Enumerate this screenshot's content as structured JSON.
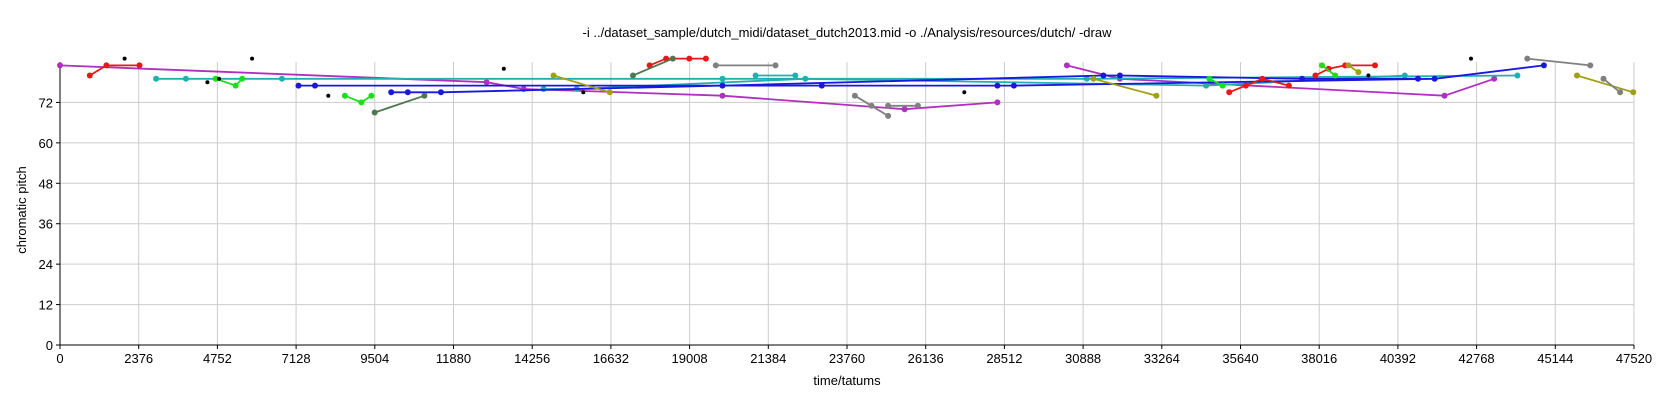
{
  "chart_data": {
    "type": "scatter",
    "title": "-i ../dataset_sample/dutch_midi/dataset_dutch2013.mid -o ./Analysis/resources/dutch/ -draw",
    "xlabel": "time/tatums",
    "ylabel": "chromatic pitch",
    "xlim": [
      0,
      47520
    ],
    "ylim": [
      0,
      84
    ],
    "x_ticks": [
      "0",
      "2376",
      "4752",
      "7128",
      "9504",
      "11880",
      "14256",
      "16632",
      "19008",
      "21384",
      "23760",
      "26136",
      "28512",
      "30888",
      "33264",
      "35640",
      "38016",
      "40392",
      "42768",
      "45144",
      "47520"
    ],
    "y_ticks": [
      "0",
      "12",
      "24",
      "36",
      "48",
      "60",
      "72"
    ],
    "grid": true,
    "series": [
      {
        "color": "#b030c0",
        "points": [
          [
            0,
            83
          ],
          [
            12880,
            78
          ],
          [
            14000,
            76
          ],
          [
            20000,
            74
          ],
          [
            25500,
            70
          ],
          [
            28300,
            72
          ]
        ]
      },
      {
        "color": "#b030c0",
        "points": [
          [
            30400,
            83
          ],
          [
            32000,
            79
          ],
          [
            41800,
            74
          ],
          [
            43300,
            79
          ]
        ]
      },
      {
        "color": "#20b0b0",
        "points": [
          [
            2900,
            79
          ],
          [
            3800,
            79
          ],
          [
            6700,
            79
          ],
          [
            20000,
            79
          ],
          [
            31000,
            79
          ],
          [
            44000,
            80
          ]
        ]
      },
      {
        "color": "#20b0b0",
        "points": [
          [
            14600,
            76
          ],
          [
            15600,
            76
          ],
          [
            22500,
            79
          ],
          [
            34600,
            77
          ],
          [
            40600,
            80
          ]
        ]
      },
      {
        "color": "#20b0b0",
        "points": [
          [
            21000,
            80
          ],
          [
            22200,
            80
          ]
        ]
      },
      {
        "color": "#1818e0",
        "points": [
          [
            7200,
            77
          ],
          [
            7700,
            77
          ],
          [
            23000,
            77
          ],
          [
            28300,
            77
          ],
          [
            28800,
            77
          ],
          [
            41500,
            79
          ],
          [
            44800,
            83
          ]
        ]
      },
      {
        "color": "#1818e0",
        "points": [
          [
            10000,
            75
          ],
          [
            10500,
            75
          ],
          [
            11500,
            75
          ],
          [
            20000,
            77
          ],
          [
            31500,
            80
          ],
          [
            32000,
            80
          ],
          [
            37500,
            79
          ],
          [
            41000,
            79
          ]
        ]
      },
      {
        "color": "#e81818",
        "points": [
          [
            900,
            80
          ],
          [
            1400,
            83
          ],
          [
            2400,
            83
          ]
        ]
      },
      {
        "color": "#e81818",
        "points": [
          [
            17800,
            83
          ],
          [
            18300,
            85
          ],
          [
            19000,
            85
          ],
          [
            19500,
            85
          ]
        ]
      },
      {
        "color": "#e81818",
        "points": [
          [
            35300,
            75
          ],
          [
            35800,
            77
          ],
          [
            36300,
            79
          ],
          [
            37100,
            77
          ]
        ]
      },
      {
        "color": "#e81818",
        "points": [
          [
            37900,
            80
          ],
          [
            38300,
            82
          ],
          [
            38800,
            83
          ],
          [
            39700,
            83
          ]
        ]
      },
      {
        "color": "#18e018",
        "points": [
          [
            4700,
            79
          ],
          [
            5300,
            77
          ],
          [
            5500,
            79
          ]
        ]
      },
      {
        "color": "#18e018",
        "points": [
          [
            8600,
            74
          ],
          [
            9100,
            72
          ],
          [
            9400,
            74
          ]
        ]
      },
      {
        "color": "#18e018",
        "points": [
          [
            34700,
            79
          ],
          [
            35100,
            77
          ]
        ]
      },
      {
        "color": "#18e018",
        "points": [
          [
            38100,
            83
          ],
          [
            38500,
            80
          ]
        ]
      },
      {
        "color": "#a0a018",
        "points": [
          [
            14900,
            80
          ],
          [
            16600,
            75
          ]
        ]
      },
      {
        "color": "#a0a018",
        "points": [
          [
            31200,
            79
          ],
          [
            33100,
            74
          ]
        ]
      },
      {
        "color": "#a0a018",
        "points": [
          [
            45800,
            80
          ],
          [
            47500,
            75
          ]
        ]
      },
      {
        "color": "#a0a018",
        "points": [
          [
            38900,
            83
          ],
          [
            39200,
            81
          ]
        ]
      },
      {
        "color": "#507850",
        "points": [
          [
            9500,
            69
          ],
          [
            11000,
            74
          ]
        ]
      },
      {
        "color": "#507850",
        "points": [
          [
            17300,
            80
          ],
          [
            18500,
            85
          ]
        ]
      },
      {
        "color": "#808080",
        "points": [
          [
            19800,
            83
          ],
          [
            21600,
            83
          ]
        ]
      },
      {
        "color": "#808080",
        "points": [
          [
            24000,
            74
          ],
          [
            24500,
            71
          ],
          [
            25000,
            68
          ]
        ]
      },
      {
        "color": "#808080",
        "points": [
          [
            25000,
            71
          ],
          [
            25900,
            71
          ]
        ]
      },
      {
        "color": "#808080",
        "points": [
          [
            44300,
            85
          ],
          [
            46200,
            83
          ]
        ]
      },
      {
        "color": "#808080",
        "points": [
          [
            46600,
            79
          ],
          [
            47100,
            75
          ]
        ]
      },
      {
        "color": "#000000",
        "points": [
          [
            1950,
            85
          ]
        ]
      },
      {
        "color": "#000000",
        "points": [
          [
            4450,
            78
          ]
        ]
      },
      {
        "color": "#000000",
        "points": [
          [
            4800,
            79
          ]
        ]
      },
      {
        "color": "#000000",
        "points": [
          [
            5800,
            85
          ]
        ]
      },
      {
        "color": "#000000",
        "points": [
          [
            8100,
            74
          ]
        ]
      },
      {
        "color": "#000000",
        "points": [
          [
            13400,
            82
          ]
        ]
      },
      {
        "color": "#000000",
        "points": [
          [
            15800,
            75
          ]
        ]
      },
      {
        "color": "#000000",
        "points": [
          [
            27300,
            75
          ]
        ]
      },
      {
        "color": "#000000",
        "points": [
          [
            42600,
            85
          ]
        ]
      },
      {
        "color": "#000000",
        "points": [
          [
            39500,
            80
          ]
        ]
      }
    ]
  }
}
